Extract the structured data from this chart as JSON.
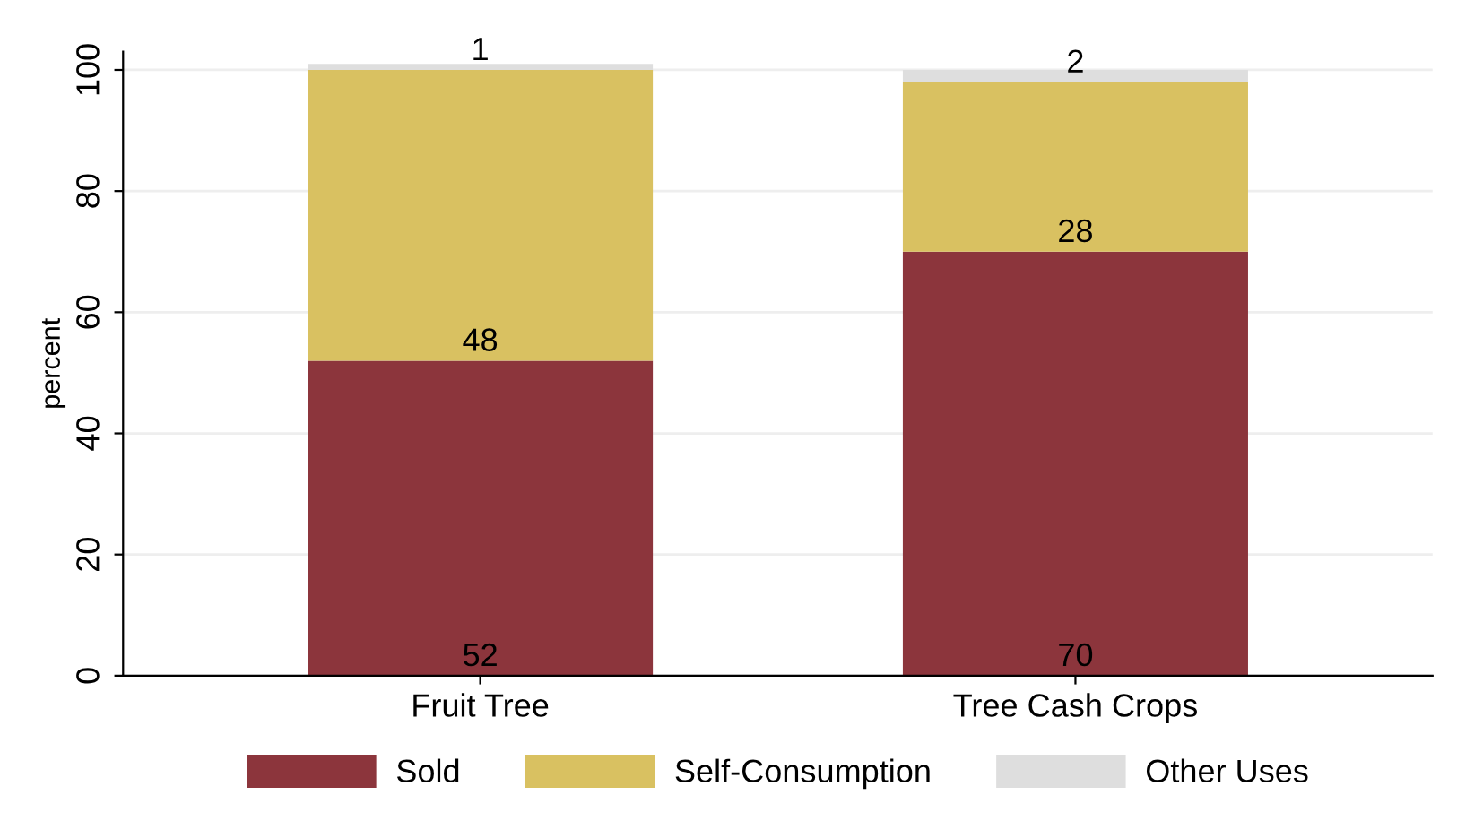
{
  "chart_data": {
    "type": "bar",
    "stacked": true,
    "ylabel": "percent",
    "categories": [
      "Fruit Tree",
      "Tree Cash Crops"
    ],
    "series": [
      {
        "name": "Sold",
        "color": "#8c353c",
        "values": [
          52,
          70
        ]
      },
      {
        "name": "Self-Consumption",
        "color": "#d9c161",
        "values": [
          48,
          28
        ]
      },
      {
        "name": "Other Uses",
        "color": "#dedede",
        "values": [
          1,
          2
        ]
      }
    ],
    "ylim": [
      0,
      103
    ],
    "yticks": [
      0,
      20,
      40,
      60,
      80,
      100
    ],
    "grid": "y",
    "legend": "bottom",
    "data_labels": true
  }
}
